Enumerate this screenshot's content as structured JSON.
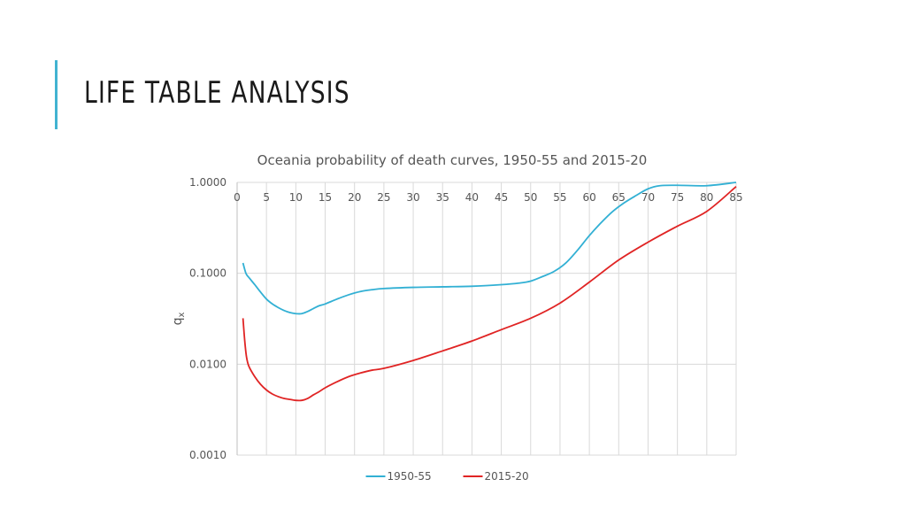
{
  "slide": {
    "title": "LIFE TABLE ANALYSIS"
  },
  "chart_data": {
    "type": "line",
    "title": "Oceania probability of death curves, 1950-55 and 2015-20",
    "xlabel": "",
    "ylabel": "q",
    "ylabel_subscript": "x",
    "yscale": "log",
    "ylim": [
      0.001,
      1.0
    ],
    "xlim": [
      0,
      85
    ],
    "x_ticks": [
      "0",
      "5",
      "10",
      "15",
      "20",
      "25",
      "30",
      "35",
      "40",
      "45",
      "50",
      "55",
      "60",
      "65",
      "70",
      "75",
      "80",
      "85"
    ],
    "y_ticks": [
      "1.0000",
      "0.1000",
      "0.0100",
      "0.0010"
    ],
    "legend_position": "bottom",
    "series": [
      {
        "name": "1950-55",
        "color": "#32b0d4",
        "x": [
          1,
          1.5,
          2,
          3,
          4,
          5,
          6,
          7,
          8,
          9,
          10,
          11,
          12,
          13,
          14,
          15,
          17,
          19,
          21,
          23,
          25,
          30,
          35,
          40,
          45,
          48,
          50,
          52,
          54,
          56,
          58,
          60,
          62,
          64,
          66,
          68,
          70,
          72,
          75,
          80,
          85
        ],
        "y": [
          0.13,
          0.1,
          0.09,
          0.075,
          0.062,
          0.052,
          0.046,
          0.042,
          0.039,
          0.037,
          0.036,
          0.036,
          0.038,
          0.041,
          0.044,
          0.046,
          0.052,
          0.058,
          0.063,
          0.066,
          0.068,
          0.07,
          0.071,
          0.072,
          0.075,
          0.078,
          0.082,
          0.092,
          0.105,
          0.13,
          0.18,
          0.26,
          0.36,
          0.48,
          0.6,
          0.72,
          0.85,
          0.92,
          0.93,
          0.92,
          1.0
        ]
      },
      {
        "name": "2015-20",
        "color": "#e02424",
        "x": [
          1,
          1.3,
          1.6,
          2,
          3,
          4,
          5,
          6,
          7,
          8,
          9,
          10,
          11,
          12,
          13,
          14,
          15,
          17,
          19,
          21,
          23,
          25,
          30,
          35,
          40,
          45,
          50,
          55,
          60,
          65,
          70,
          75,
          80,
          85
        ],
        "y": [
          0.032,
          0.018,
          0.012,
          0.0095,
          0.0073,
          0.006,
          0.0052,
          0.0047,
          0.0044,
          0.0042,
          0.0041,
          0.004,
          0.004,
          0.0042,
          0.0046,
          0.005,
          0.0055,
          0.0064,
          0.0073,
          0.008,
          0.0086,
          0.009,
          0.011,
          0.014,
          0.018,
          0.024,
          0.032,
          0.047,
          0.08,
          0.14,
          0.22,
          0.33,
          0.48,
          0.9
        ]
      }
    ]
  }
}
